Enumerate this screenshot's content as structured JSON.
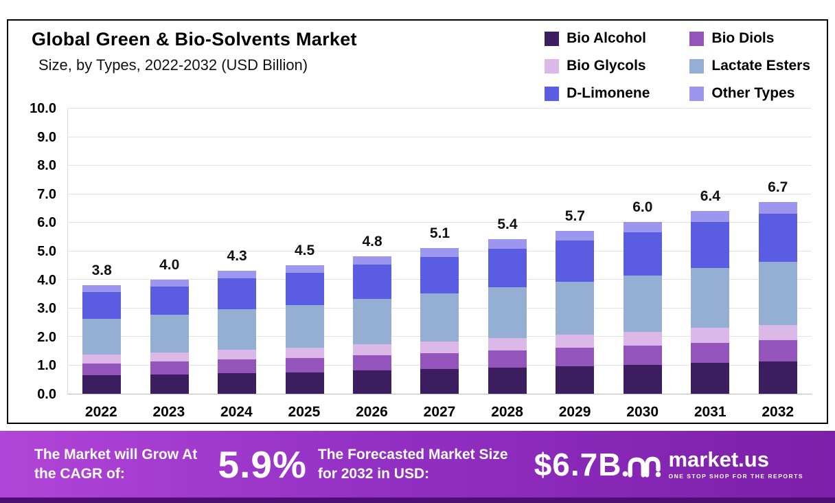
{
  "chart": {
    "title_line1": "Global Green & Bio-Solvents Market",
    "title_line2": "Size, by Types, 2022-2032 (USD Billion)"
  },
  "chart_data": {
    "type": "bar",
    "stacked": true,
    "title": "Global Green & Bio-Solvents Market Size, by Types, 2022-2032 (USD Billion)",
    "units": "USD Billion",
    "categories": [
      "2022",
      "2023",
      "2024",
      "2025",
      "2026",
      "2027",
      "2028",
      "2029",
      "2030",
      "2031",
      "2032"
    ],
    "totals": [
      3.8,
      4.0,
      4.3,
      4.5,
      4.8,
      5.1,
      5.4,
      5.7,
      6.0,
      6.4,
      6.7
    ],
    "total_labels": [
      "3.8",
      "4.0",
      "4.3",
      "4.5",
      "4.8",
      "5.1",
      "5.4",
      "5.7",
      "6.0",
      "6.4",
      "6.7"
    ],
    "series": [
      {
        "name": "Bio Alcohol",
        "color": "#3c1d60",
        "values": [
          0.65,
          0.68,
          0.73,
          0.75,
          0.82,
          0.87,
          0.92,
          0.97,
          1.02,
          1.09,
          1.13
        ]
      },
      {
        "name": "Bio Diols",
        "color": "#9355bb",
        "values": [
          0.42,
          0.44,
          0.47,
          0.5,
          0.53,
          0.56,
          0.59,
          0.63,
          0.66,
          0.7,
          0.74
        ]
      },
      {
        "name": "Bio Glycols",
        "color": "#dcb8e8",
        "values": [
          0.3,
          0.32,
          0.34,
          0.36,
          0.38,
          0.4,
          0.43,
          0.46,
          0.48,
          0.51,
          0.54
        ]
      },
      {
        "name": "Lactate Esters",
        "color": "#95aed4",
        "values": [
          1.25,
          1.32,
          1.42,
          1.49,
          1.58,
          1.68,
          1.78,
          1.87,
          1.98,
          2.11,
          2.21
        ]
      },
      {
        "name": "D-Limonene",
        "color": "#5a5ce2",
        "values": [
          0.95,
          1.0,
          1.08,
          1.13,
          1.2,
          1.28,
          1.35,
          1.43,
          1.5,
          1.6,
          1.68
        ]
      },
      {
        "name": "Other Types",
        "color": "#9d96ef",
        "values": [
          0.23,
          0.24,
          0.26,
          0.27,
          0.29,
          0.31,
          0.33,
          0.34,
          0.36,
          0.39,
          0.4
        ]
      }
    ],
    "ylim": [
      0,
      10
    ],
    "ytick_step": 1,
    "ytick_labels": [
      "0.0",
      "1.0",
      "2.0",
      "3.0",
      "4.0",
      "5.0",
      "6.0",
      "7.0",
      "8.0",
      "9.0",
      "10.0"
    ],
    "xlabel": "",
    "ylabel": "",
    "grid": true,
    "legend_position": "top-right"
  },
  "banner": {
    "cagr_label": "The Market will Grow At the CAGR of:",
    "cagr_value": "5.9%",
    "forecast_label": "The Forecasted Market Size for 2032 in USD:",
    "forecast_value": "$6.7B",
    "brand_name": "market.us",
    "brand_tagline": "ONE STOP SHOP FOR THE REPORTS"
  },
  "colors": {
    "banner_gradient_start": "#b145d8",
    "banner_gradient_end": "#7c1fa9",
    "banner_strip": "#4d0f73"
  }
}
